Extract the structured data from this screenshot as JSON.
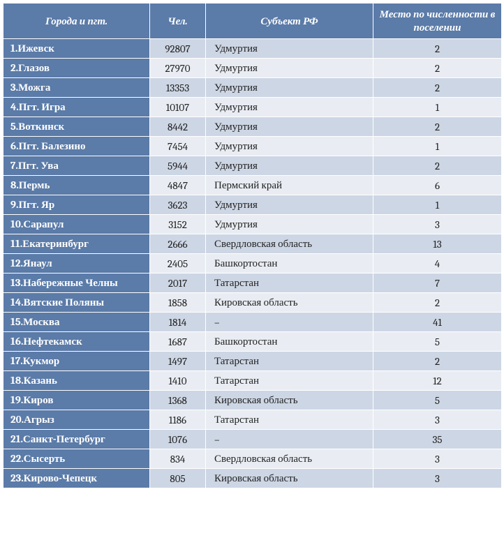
{
  "header": {
    "col1": "Города и пгт.",
    "col2": "Чел.",
    "col3": "Субъект РФ",
    "col4": "Место по численности в поселении"
  },
  "rows": [
    {
      "n": "1",
      "city": "Ижевск",
      "pop": "92807",
      "subj": "Удмуртия",
      "rank": "2"
    },
    {
      "n": "2",
      "city": "Глазов",
      "pop": "27970",
      "subj": "Удмуртия",
      "rank": "2"
    },
    {
      "n": "3",
      "city": "Можга",
      "pop": "13353",
      "subj": "Удмуртия",
      "rank": "2"
    },
    {
      "n": "4",
      "city": "Пгт. Игра",
      "pop": "10107",
      "subj": "Удмуртия",
      "rank": "1"
    },
    {
      "n": "5",
      "city": "Воткинск",
      "pop": "8442",
      "subj": "Удмуртия",
      "rank": "2"
    },
    {
      "n": "6",
      "city": "Пгт. Балезино",
      "pop": "7454",
      "subj": "Удмуртия",
      "rank": "1"
    },
    {
      "n": "7",
      "city": "Пгт. Ува",
      "pop": "5944",
      "subj": "Удмуртия",
      "rank": "2"
    },
    {
      "n": "8",
      "city": "Пермь",
      "pop": "4847",
      "subj": "Пермский край",
      "rank": "6"
    },
    {
      "n": "9",
      "city": "Пгт. Яр",
      "pop": "3623",
      "subj": "Удмуртия",
      "rank": "1"
    },
    {
      "n": "10",
      "city": "Сарапул",
      "pop": "3152",
      "subj": "Удмуртия",
      "rank": "3"
    },
    {
      "n": "11",
      "city": "Екатеринбург",
      "pop": "2666",
      "subj": "Свердловская область",
      "rank": "13"
    },
    {
      "n": "12",
      "city": "Янаул",
      "pop": "2405",
      "subj": "Башкортостан",
      "rank": "4"
    },
    {
      "n": "13",
      "city": "Набережные Челны",
      "pop": "2017",
      "subj": "Татарстан",
      "rank": "7"
    },
    {
      "n": "14",
      "city": "Вятские Поляны",
      "pop": "1858",
      "subj": "Кировская область",
      "rank": "2"
    },
    {
      "n": "15",
      "city": "Москва",
      "pop": "1814",
      "subj": "–",
      "rank": "41"
    },
    {
      "n": "16",
      "city": "Нефтекамск",
      "pop": "1687",
      "subj": "Башкортостан",
      "rank": "5"
    },
    {
      "n": "17",
      "city": "Кукмор",
      "pop": "1497",
      "subj": "Татарстан",
      "rank": "2"
    },
    {
      "n": "18",
      "city": "Казань",
      "pop": "1410",
      "subj": "Татарстан",
      "rank": "12"
    },
    {
      "n": "19",
      "city": "Киров",
      "pop": "1368",
      "subj": "Кировская область",
      "rank": "5"
    },
    {
      "n": "20",
      "city": "Агрыз",
      "pop": "1186",
      "subj": "Татарстан",
      "rank": "3"
    },
    {
      "n": "21",
      "city": "Санкт-Петербург",
      "pop": "1076",
      "subj": "–",
      "rank": "35"
    },
    {
      "n": "22",
      "city": "Сысерть",
      "pop": "834",
      "subj": "Свердловская область",
      "rank": "3"
    },
    {
      "n": "23",
      "city": "Кирово-Чепецк",
      "pop": "805",
      "subj": "Кировская область",
      "rank": "3"
    }
  ],
  "style": {
    "header_bg": "#5b7ba8",
    "header_fg": "#ffffff",
    "city_bg": "#5b7ba8",
    "city_fg": "#ffffff",
    "row_odd_bg": "#cdd6e4",
    "row_even_bg": "#e9edf3",
    "border_color": "#ffffff",
    "font_family": "Cambria",
    "font_size_pt": 11
  }
}
